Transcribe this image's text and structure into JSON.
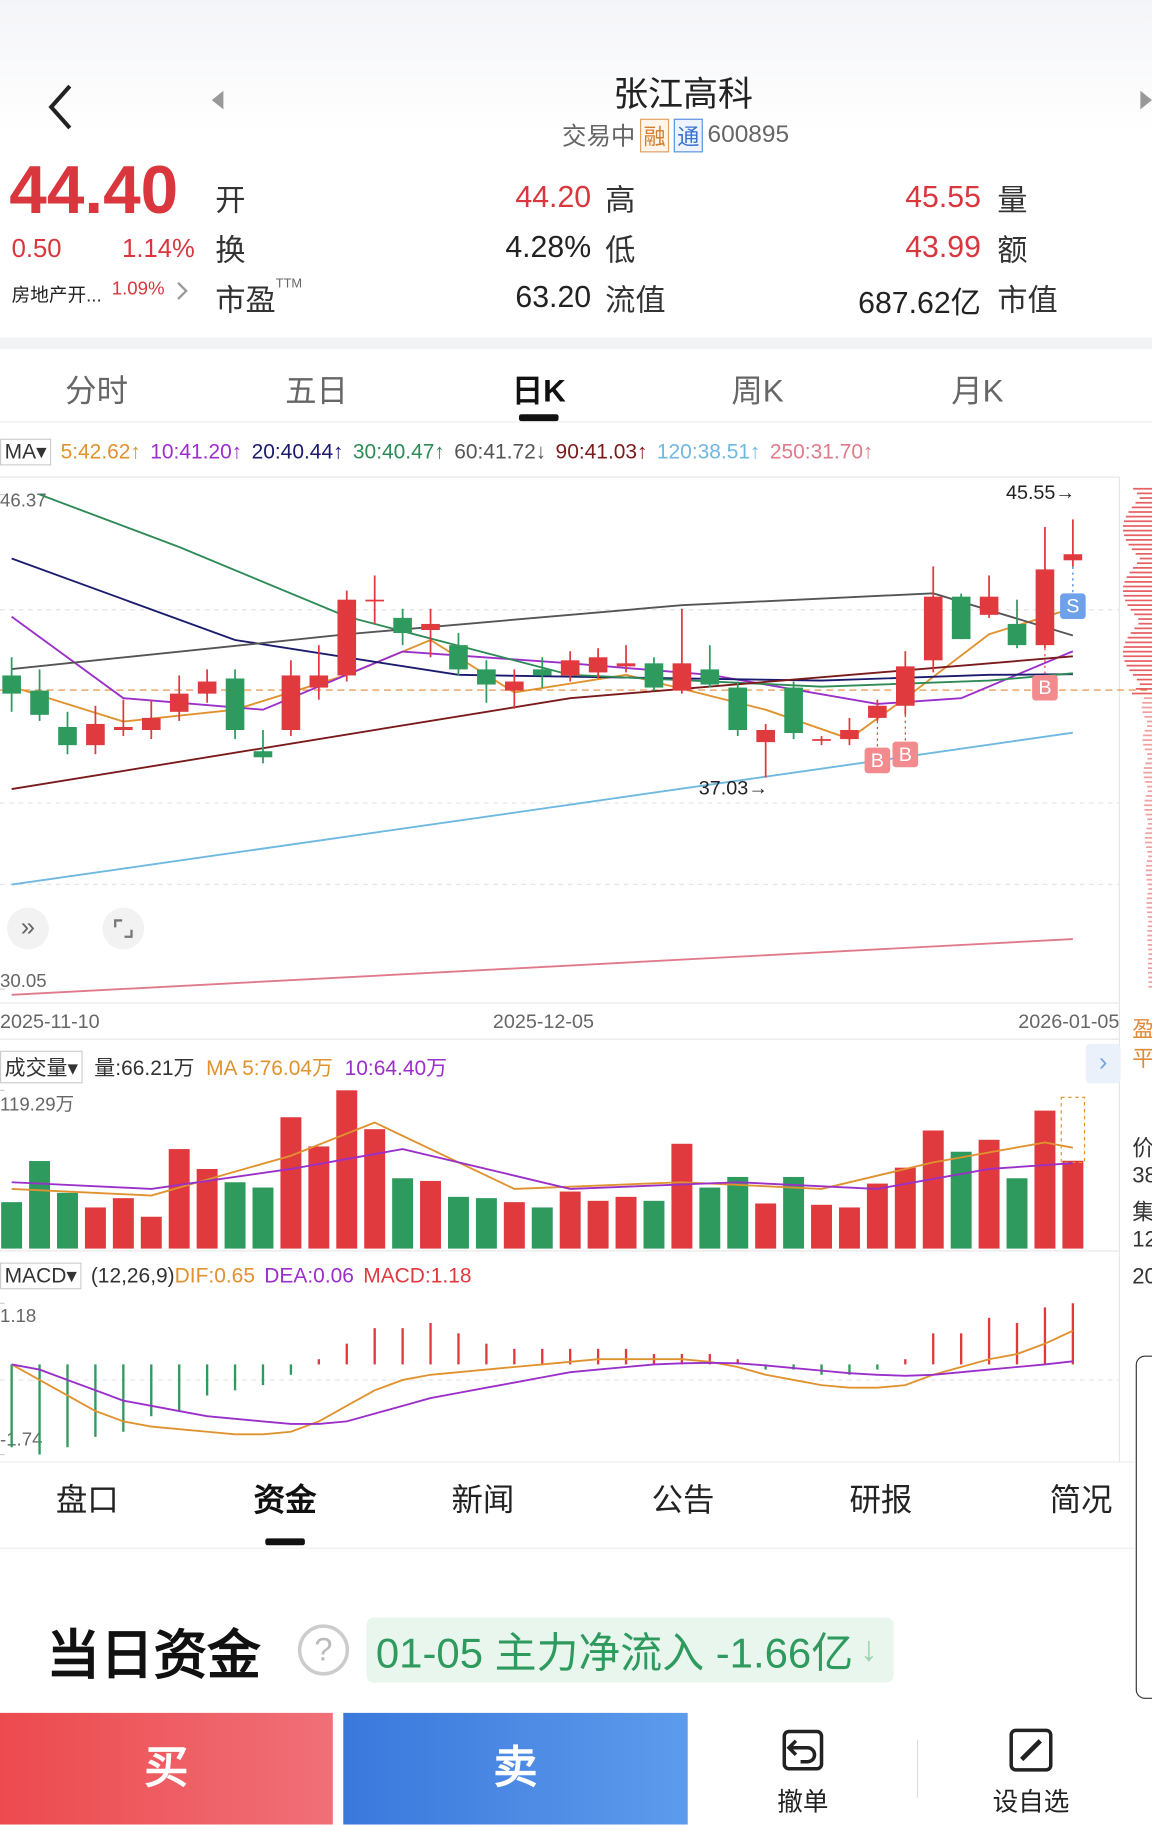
{
  "header": {
    "title": "张江高科",
    "status": "交易中",
    "badges": [
      "融",
      "通"
    ],
    "code": "600895"
  },
  "quote": {
    "price": "44.40",
    "change": "0.50",
    "change_pct": "1.14%",
    "sector": "房地产开...",
    "sector_pct": "1.09%",
    "stats": [
      [
        {
          "label": "开"
        },
        {
          "value": "44.20",
          "color": "#d9363e"
        },
        {
          "label": "高"
        },
        {
          "value": "45.55",
          "color": "#d9363e"
        },
        {
          "label": "量"
        }
      ],
      [
        {
          "label": "换"
        },
        {
          "value": "4.28%",
          "color": "#222222"
        },
        {
          "label": "低"
        },
        {
          "value": "43.99",
          "color": "#d9363e"
        },
        {
          "label": "额"
        }
      ],
      [
        {
          "label": "市盈",
          "sup": "TTM"
        },
        {
          "value": "63.20",
          "color": "#222222"
        },
        {
          "label": "流值"
        },
        {
          "value": "687.62亿",
          "color": "#222222"
        },
        {
          "label": "市值"
        }
      ]
    ]
  },
  "period_tabs": {
    "items": [
      "分时",
      "五日",
      "日K",
      "周K",
      "月K"
    ],
    "active": 2
  },
  "kline": {
    "type": "candlestick",
    "ma_button": "MA",
    "ylim": [
      30.05,
      46.37
    ],
    "yticks": [
      46.37,
      30.05
    ],
    "dates": [
      "2025-11-10",
      "2025-12-05",
      "2026-01-05"
    ],
    "up_color": "#e0393e",
    "down_color": "#2e9a5e",
    "candles": [
      [
        40.4,
        41.0,
        39.2,
        39.8
      ],
      [
        39.9,
        40.6,
        38.9,
        39.1
      ],
      [
        38.7,
        39.2,
        37.8,
        38.1
      ],
      [
        38.1,
        39.4,
        37.8,
        38.8
      ],
      [
        38.6,
        39.6,
        38.4,
        38.7
      ],
      [
        38.6,
        39.6,
        38.3,
        39.0
      ],
      [
        39.2,
        40.4,
        38.9,
        39.8
      ],
      [
        39.8,
        40.6,
        39.5,
        40.2
      ],
      [
        40.3,
        40.6,
        38.3,
        38.6
      ],
      [
        37.9,
        38.6,
        37.5,
        37.7
      ],
      [
        38.6,
        40.9,
        38.4,
        40.4
      ],
      [
        40.0,
        41.4,
        39.6,
        40.4
      ],
      [
        40.4,
        43.2,
        40.2,
        42.9
      ],
      [
        42.9,
        43.7,
        42.1,
        42.9
      ],
      [
        42.3,
        42.6,
        41.4,
        41.8
      ],
      [
        41.9,
        42.6,
        41.0,
        42.1
      ],
      [
        41.4,
        41.8,
        40.4,
        40.6
      ],
      [
        40.6,
        40.9,
        39.5,
        40.1
      ],
      [
        39.9,
        40.6,
        39.3,
        40.2
      ],
      [
        40.6,
        41.0,
        40.0,
        40.4
      ],
      [
        40.4,
        41.2,
        40.2,
        40.9
      ],
      [
        40.5,
        41.3,
        40.3,
        41.0
      ],
      [
        40.7,
        41.4,
        40.5,
        40.8
      ],
      [
        40.8,
        41.0,
        39.9,
        40.0
      ],
      [
        39.9,
        42.6,
        39.8,
        40.8
      ],
      [
        40.6,
        41.4,
        40.0,
        40.1
      ],
      [
        40.0,
        40.2,
        38.4,
        38.6
      ],
      [
        38.2,
        38.8,
        37.03,
        38.6
      ],
      [
        40.0,
        40.2,
        38.3,
        38.5
      ],
      [
        38.3,
        38.4,
        38.1,
        38.3
      ],
      [
        38.3,
        39.0,
        38.1,
        38.6
      ],
      [
        39.0,
        39.6,
        38.9,
        39.4
      ],
      [
        39.4,
        41.2,
        39.1,
        40.7
      ],
      [
        40.9,
        44.0,
        40.5,
        43.0
      ],
      [
        43.0,
        43.1,
        41.6,
        41.6
      ],
      [
        42.4,
        43.7,
        42.3,
        43.0
      ],
      [
        42.1,
        42.9,
        41.3,
        41.4
      ],
      [
        41.4,
        45.3,
        41.3,
        43.9
      ],
      [
        44.2,
        45.55,
        43.99,
        44.4
      ]
    ],
    "ma": [
      {
        "name": "5:42.62↑",
        "color": "#e0922f",
        "x": [
          0,
          4,
          8,
          12,
          15,
          18,
          22,
          27,
          30,
          32,
          35,
          38
        ],
        "values": [
          40.03,
          38.88,
          39.27,
          40.42,
          41.57,
          39.84,
          40.42,
          39.27,
          38.31,
          39.65,
          41.76,
          42.62
        ]
      },
      {
        "name": "10:41.20↑",
        "color": "#9b2fc9",
        "x": [
          0,
          4,
          9,
          14,
          20,
          25,
          31,
          34,
          38
        ],
        "values": [
          42.34,
          39.65,
          39.27,
          41.19,
          40.8,
          40.42,
          39.46,
          39.65,
          41.2
        ]
      },
      {
        "name": "20:40.44↑",
        "color": "#1a1a6e",
        "x": [
          0,
          8,
          16,
          29,
          35,
          38
        ],
        "values": [
          44.26,
          41.57,
          40.42,
          40.23,
          40.42,
          40.44
        ]
      },
      {
        "name": "30:40.47↑",
        "color": "#2e8b57",
        "x": [
          1,
          6,
          12,
          20,
          29,
          35,
          38
        ],
        "values": [
          46.37,
          44.64,
          42.34,
          40.42,
          40.03,
          40.23,
          40.47
        ]
      },
      {
        "name": "60:41.72↓",
        "color": "#555555",
        "x": [
          0,
          12,
          24,
          33,
          38
        ],
        "values": [
          40.61,
          41.76,
          42.72,
          43.11,
          41.72
        ]
      },
      {
        "name": "90:41.03↑",
        "color": "#7a1a1a",
        "x": [
          0,
          20,
          38
        ],
        "values": [
          36.65,
          39.65,
          41.03
        ]
      },
      {
        "name": "120:38.51↑",
        "color": "#6fb8e0",
        "x": [
          0,
          38
        ],
        "values": [
          33.5,
          38.51
        ]
      },
      {
        "name": "250:31.70↑",
        "color": "#e07a8a",
        "x": [
          0,
          38
        ],
        "values": [
          29.86,
          31.7
        ]
      }
    ],
    "high_label": "45.55→",
    "low_label": "37.03→",
    "trade_marks": [
      {
        "index": 31,
        "label": "B"
      },
      {
        "index": 32,
        "label": "B"
      },
      {
        "index": 37,
        "label": "B"
      },
      {
        "index": 38,
        "label": "S"
      }
    ]
  },
  "volume": {
    "button": "成交量",
    "current": "量:66.21万",
    "ylim": [
      0,
      119.29
    ],
    "yticks": [
      {
        "value": 119.29,
        "label": "119.29万"
      }
    ],
    "values": [
      35,
      66,
      42,
      31,
      38,
      24,
      75,
      60,
      50,
      46,
      99,
      77,
      119.29,
      90,
      53,
      51,
      39,
      38,
      35,
      31,
      43,
      36,
      39,
      36,
      79,
      46,
      54,
      34,
      54,
      33,
      31,
      49,
      61,
      89,
      73,
      82,
      53,
      104,
      66.21
    ],
    "ma": [
      {
        "name": "MA 5:76.04万",
        "color": "#e0922f",
        "x": [
          0,
          5,
          10,
          13,
          18,
          24,
          29,
          33,
          37,
          38
        ],
        "values": [
          45,
          40,
          70,
          95,
          45,
          50,
          45,
          65,
          80,
          76.04
        ]
      },
      {
        "name": "10:64.40万",
        "color": "#9b2fc9",
        "x": [
          0,
          5,
          10,
          14,
          20,
          26,
          31,
          35,
          38
        ],
        "values": [
          50,
          45,
          60,
          75,
          45,
          50,
          45,
          60,
          64.4
        ]
      }
    ]
  },
  "macd": {
    "button": "MACD",
    "params": "(12,26,9)",
    "legend": [
      {
        "name": "DIF:0.65",
        "color": "#e0922f"
      },
      {
        "name": "DEA:0.06",
        "color": "#9b2fc9"
      },
      {
        "name": "MACD:1.18",
        "color": "#e0393e"
      }
    ],
    "ylim": [
      -1.74,
      1.18
    ],
    "yticks": [
      1.18,
      -1.74
    ],
    "hist": [
      -1.6,
      -1.74,
      -1.6,
      -1.4,
      -1.3,
      -1.0,
      -0.9,
      -0.6,
      -0.5,
      -0.4,
      -0.2,
      0.1,
      0.4,
      0.7,
      0.7,
      0.8,
      0.6,
      0.4,
      0.3,
      0.3,
      0.3,
      0.3,
      0.3,
      0.2,
      0.2,
      0.2,
      0.1,
      -0.1,
      -0.1,
      -0.2,
      -0.2,
      -0.1,
      0.1,
      0.6,
      0.6,
      0.9,
      0.8,
      1.1,
      1.18
    ],
    "dif": [
      0.0,
      -0.3,
      -0.6,
      -0.9,
      -1.1,
      -1.2,
      -1.25,
      -1.3,
      -1.35,
      -1.35,
      -1.3,
      -1.1,
      -0.8,
      -0.5,
      -0.3,
      -0.2,
      -0.15,
      -0.1,
      -0.05,
      0,
      0.05,
      0.1,
      0.1,
      0.1,
      0.1,
      0.05,
      -0.05,
      -0.2,
      -0.3,
      -0.4,
      -0.45,
      -0.45,
      -0.4,
      -0.2,
      -0.05,
      0.1,
      0.2,
      0.4,
      0.65
    ],
    "dea": [
      0.0,
      -0.1,
      -0.3,
      -0.5,
      -0.7,
      -0.8,
      -0.9,
      -1.0,
      -1.05,
      -1.1,
      -1.15,
      -1.15,
      -1.1,
      -0.95,
      -0.8,
      -0.65,
      -0.55,
      -0.45,
      -0.35,
      -0.25,
      -0.15,
      -0.1,
      -0.05,
      0,
      0.02,
      0.03,
      0.02,
      -0.02,
      -0.07,
      -0.12,
      -0.17,
      -0.2,
      -0.22,
      -0.2,
      -0.15,
      -0.1,
      -0.05,
      0.0,
      0.06
    ]
  },
  "right_panel": [
    "盈",
    "平",
    "价",
    "38",
    "集",
    "12",
    "20"
  ],
  "info_tabs": {
    "items": [
      "盘口",
      "资金",
      "新闻",
      "公告",
      "研报",
      "简况"
    ],
    "active": 1
  },
  "funds": {
    "title": "当日资金",
    "help": "?",
    "flow": "01-05 主力净流入 -1.66亿",
    "arrow": "↓"
  },
  "actions": {
    "buy": "买",
    "sell": "卖",
    "cancel": "撤单",
    "watch": "设自选"
  }
}
